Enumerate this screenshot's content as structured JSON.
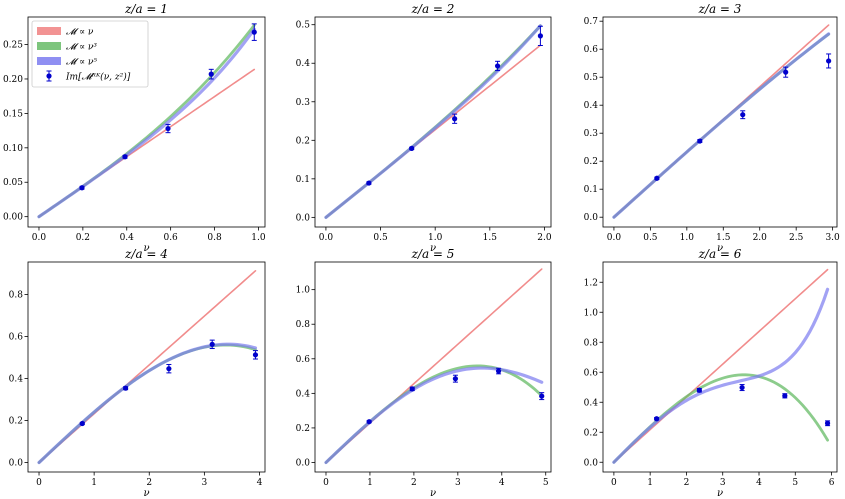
{
  "legend": {
    "placement": "upper-left of first panel",
    "entries": [
      {
        "label": "𝓜 ∝ ν",
        "color": "#f08080",
        "kind": "band"
      },
      {
        "label": "𝓜 ∝ ν³",
        "color": "#66bb66",
        "kind": "band"
      },
      {
        "label": "𝓜 ∝ ν⁵",
        "color": "#7b7bf0",
        "kind": "band"
      },
      {
        "label": "Im[𝓜ᴿᴷ(ν, z²)]",
        "color": "#0000cc",
        "kind": "errorbar"
      }
    ]
  },
  "colors": {
    "linear": "#f08080",
    "cubic": "#66bb66",
    "quintic": "#7b7bf0",
    "data": "#0000cc"
  },
  "chart_data": [
    {
      "type": "scatter",
      "title": "z/a = 1",
      "xlabel": "ν",
      "ylabel": "",
      "xlim": [
        -0.05,
        1.03
      ],
      "ylim": [
        -0.015,
        0.29
      ],
      "xticks": [
        0.0,
        0.2,
        0.4,
        0.6,
        0.8,
        1.0
      ],
      "xtick_labels": [
        "0.0",
        "0.2",
        "0.4",
        "0.6",
        "0.8",
        "1.0"
      ],
      "yticks": [
        0.0,
        0.05,
        0.1,
        0.15,
        0.2,
        0.25
      ],
      "ytick_labels": [
        "0.00",
        "0.05",
        "0.10",
        "0.15",
        "0.20",
        "0.25"
      ],
      "points": [
        {
          "x": 0.196,
          "y": 0.042,
          "err": 0.002
        },
        {
          "x": 0.392,
          "y": 0.087,
          "err": 0.002
        },
        {
          "x": 0.588,
          "y": 0.128,
          "err": 0.006
        },
        {
          "x": 0.785,
          "y": 0.207,
          "err": 0.007
        },
        {
          "x": 0.981,
          "y": 0.268,
          "err": 0.012
        }
      ],
      "fits": {
        "linear": {
          "coeffs": [
            0.218
          ],
          "xmax": 0.981
        },
        "cubic": {
          "coeffs": [
            0.218,
            0.068
          ],
          "xmax": 0.981
        },
        "quintic": {
          "coeffs": [
            0.218,
            0.035,
            0.028
          ],
          "xmax": 0.981
        }
      }
    },
    {
      "type": "scatter",
      "title": "z/a = 2",
      "xlabel": "ν",
      "ylabel": "",
      "xlim": [
        -0.1,
        2.06
      ],
      "ylim": [
        -0.025,
        0.52
      ],
      "xticks": [
        0.0,
        0.5,
        1.0,
        1.5,
        2.0
      ],
      "xtick_labels": [
        "0.0",
        "0.5",
        "1.0",
        "1.5",
        "2.0"
      ],
      "yticks": [
        0.0,
        0.1,
        0.2,
        0.3,
        0.4,
        0.5
      ],
      "ytick_labels": [
        "0.0",
        "0.1",
        "0.2",
        "0.3",
        "0.4",
        "0.5"
      ],
      "points": [
        {
          "x": 0.393,
          "y": 0.089,
          "err": 0.003
        },
        {
          "x": 0.785,
          "y": 0.179,
          "err": 0.003
        },
        {
          "x": 1.178,
          "y": 0.256,
          "err": 0.012
        },
        {
          "x": 1.571,
          "y": 0.393,
          "err": 0.012
        },
        {
          "x": 1.963,
          "y": 0.471,
          "err": 0.025
        }
      ],
      "fits": {
        "linear": {
          "coeffs": [
            0.2275
          ],
          "xmax": 1.963
        },
        "cubic": {
          "coeffs": [
            0.2275,
            0.0067
          ],
          "xmax": 1.963
        },
        "quintic": {
          "coeffs": [
            0.2275,
            0.004,
            0.0007
          ],
          "xmax": 1.963
        }
      }
    },
    {
      "type": "scatter",
      "title": "z/a = 3",
      "xlabel": "ν",
      "ylabel": "",
      "xlim": [
        -0.15,
        3.06
      ],
      "ylim": [
        -0.035,
        0.715
      ],
      "xticks": [
        0.0,
        0.5,
        1.0,
        1.5,
        2.0,
        2.5,
        3.0
      ],
      "xtick_labels": [
        "0.0",
        "0.5",
        "1.0",
        "1.5",
        "2.0",
        "2.5",
        "3.0"
      ],
      "yticks": [
        0.0,
        0.1,
        0.2,
        0.3,
        0.4,
        0.5,
        0.6,
        0.7
      ],
      "ytick_labels": [
        "0.0",
        "0.1",
        "0.2",
        "0.3",
        "0.4",
        "0.5",
        "0.6",
        "0.7"
      ],
      "points": [
        {
          "x": 0.589,
          "y": 0.139,
          "err": 0.004
        },
        {
          "x": 1.178,
          "y": 0.272,
          "err": 0.005
        },
        {
          "x": 1.767,
          "y": 0.366,
          "err": 0.014
        },
        {
          "x": 2.356,
          "y": 0.518,
          "err": 0.018
        },
        {
          "x": 2.945,
          "y": 0.558,
          "err": 0.025
        }
      ],
      "fits": {
        "linear": {
          "coeffs": [
            0.233
          ],
          "xmax": 2.945
        },
        "cubic": {
          "coeffs": [
            0.2345,
            -0.00145
          ],
          "xmax": 2.945
        },
        "quintic": {
          "coeffs": [
            0.2345,
            -0.0015,
            1e-05
          ],
          "xmax": 2.945
        }
      }
    },
    {
      "type": "scatter",
      "title": "z/a = 4",
      "xlabel": "ν",
      "ylabel": "",
      "xlim": [
        -0.2,
        4.1
      ],
      "ylim": [
        -0.045,
        0.955
      ],
      "xticks": [
        0,
        1,
        2,
        3,
        4
      ],
      "xtick_labels": [
        "0",
        "1",
        "2",
        "3",
        "4"
      ],
      "yticks": [
        0.0,
        0.2,
        0.4,
        0.6,
        0.8
      ],
      "ytick_labels": [
        "0.0",
        "0.2",
        "0.4",
        "0.6",
        "0.8"
      ],
      "points": [
        {
          "x": 0.785,
          "y": 0.186,
          "err": 0.005
        },
        {
          "x": 1.571,
          "y": 0.354,
          "err": 0.007
        },
        {
          "x": 2.356,
          "y": 0.447,
          "err": 0.02
        },
        {
          "x": 3.142,
          "y": 0.563,
          "err": 0.02
        },
        {
          "x": 3.927,
          "y": 0.513,
          "err": 0.02
        }
      ],
      "fits": {
        "linear": {
          "coeffs": [
            0.2325
          ],
          "xmax": 3.927
        },
        "cubic": {
          "coeffs": [
            0.2476,
            -0.00718
          ],
          "xmax": 3.927
        },
        "quintic": {
          "coeffs": [
            0.2476,
            -0.0072,
            1e-05
          ],
          "xmax": 3.927
        }
      }
    },
    {
      "type": "scatter",
      "title": "z/a = 5",
      "xlabel": "ν",
      "ylabel": "",
      "xlim": [
        -0.25,
        5.12
      ],
      "ylim": [
        -0.055,
        1.16
      ],
      "xticks": [
        0,
        1,
        2,
        3,
        4,
        5
      ],
      "xtick_labels": [
        "0",
        "1",
        "2",
        "3",
        "4",
        "5"
      ],
      "yticks": [
        0.0,
        0.2,
        0.4,
        0.6,
        0.8,
        1.0
      ],
      "ytick_labels": [
        "0.0",
        "0.2",
        "0.4",
        "0.6",
        "0.8",
        "1.0"
      ],
      "points": [
        {
          "x": 0.982,
          "y": 0.236,
          "err": 0.006
        },
        {
          "x": 1.963,
          "y": 0.426,
          "err": 0.01
        },
        {
          "x": 2.945,
          "y": 0.485,
          "err": 0.02
        },
        {
          "x": 3.927,
          "y": 0.529,
          "err": 0.016
        },
        {
          "x": 4.909,
          "y": 0.384,
          "err": 0.02
        }
      ],
      "fits": {
        "linear": {
          "coeffs": [
            0.228
          ],
          "xmax": 4.909
        },
        "cubic": {
          "coeffs": [
            0.2433,
            -0.00683
          ],
          "xmax": 4.909
        },
        "quintic": {
          "coeffs": [
            0.2433,
            -0.0081,
            8e-05
          ],
          "xmax": 4.909
        }
      }
    },
    {
      "type": "scatter",
      "title": "z/a = 6",
      "xlabel": "ν",
      "ylabel": "",
      "xlim": [
        -0.3,
        6.15
      ],
      "ylim": [
        -0.065,
        1.335
      ],
      "xticks": [
        0,
        1,
        2,
        3,
        4,
        5,
        6
      ],
      "xtick_labels": [
        "0",
        "1",
        "2",
        "3",
        "4",
        "5",
        "6"
      ],
      "yticks": [
        0.0,
        0.2,
        0.4,
        0.6,
        0.8,
        1.0,
        1.2
      ],
      "ytick_labels": [
        "0.0",
        "0.2",
        "0.4",
        "0.6",
        "0.8",
        "1.0",
        "1.2"
      ],
      "points": [
        {
          "x": 1.178,
          "y": 0.29,
          "err": 0.008
        },
        {
          "x": 2.356,
          "y": 0.48,
          "err": 0.012
        },
        {
          "x": 3.534,
          "y": 0.498,
          "err": 0.02
        },
        {
          "x": 4.712,
          "y": 0.443,
          "err": 0.014
        },
        {
          "x": 5.89,
          "y": 0.26,
          "err": 0.016
        }
      ],
      "fits": {
        "linear": {
          "coeffs": [
            0.218
          ],
          "xmax": 5.89
        },
        "cubic": {
          "coeffs": [
            0.2436,
            -0.0063
          ],
          "xmax": 5.89
        },
        "quintic": {
          "coeffs": [
            0.2436,
            -0.0104,
            0.00026
          ],
          "xmax": 5.89
        }
      }
    }
  ]
}
